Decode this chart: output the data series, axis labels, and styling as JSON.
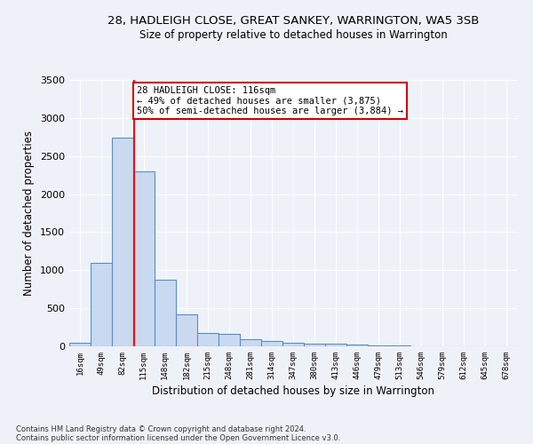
{
  "title1": "28, HADLEIGH CLOSE, GREAT SANKEY, WARRINGTON, WA5 3SB",
  "title2": "Size of property relative to detached houses in Warrington",
  "xlabel": "Distribution of detached houses by size in Warrington",
  "ylabel": "Number of detached properties",
  "footer1": "Contains HM Land Registry data © Crown copyright and database right 2024.",
  "footer2": "Contains public sector information licensed under the Open Government Licence v3.0.",
  "annotation_line1": "28 HADLEIGH CLOSE: 116sqm",
  "annotation_line2": "← 49% of detached houses are smaller (3,875)",
  "annotation_line3": "50% of semi-detached houses are larger (3,884) →",
  "bar_color": "#c9d9f0",
  "bar_edge_color": "#5a8fc2",
  "red_line_x": 116,
  "categories": [
    "16sqm",
    "49sqm",
    "82sqm",
    "115sqm",
    "148sqm",
    "182sqm",
    "215sqm",
    "248sqm",
    "281sqm",
    "314sqm",
    "347sqm",
    "380sqm",
    "413sqm",
    "446sqm",
    "479sqm",
    "513sqm",
    "546sqm",
    "579sqm",
    "612sqm",
    "645sqm",
    "678sqm"
  ],
  "bin_starts": [
    16,
    49,
    82,
    115,
    148,
    182,
    215,
    248,
    281,
    314,
    347,
    380,
    413,
    446,
    479,
    513,
    546,
    579,
    612,
    645,
    678
  ],
  "bin_width": 33,
  "values": [
    50,
    1100,
    2740,
    2300,
    875,
    425,
    170,
    165,
    90,
    65,
    50,
    40,
    35,
    20,
    15,
    8,
    5,
    3,
    2,
    1,
    1
  ],
  "ylim": [
    0,
    3500
  ],
  "yticks": [
    0,
    500,
    1000,
    1500,
    2000,
    2500,
    3000,
    3500
  ],
  "bg_color": "#eef2f8",
  "grid_color": "#ffffff",
  "annotation_box_color": "#ffffff",
  "annotation_box_edge": "#cc0000"
}
